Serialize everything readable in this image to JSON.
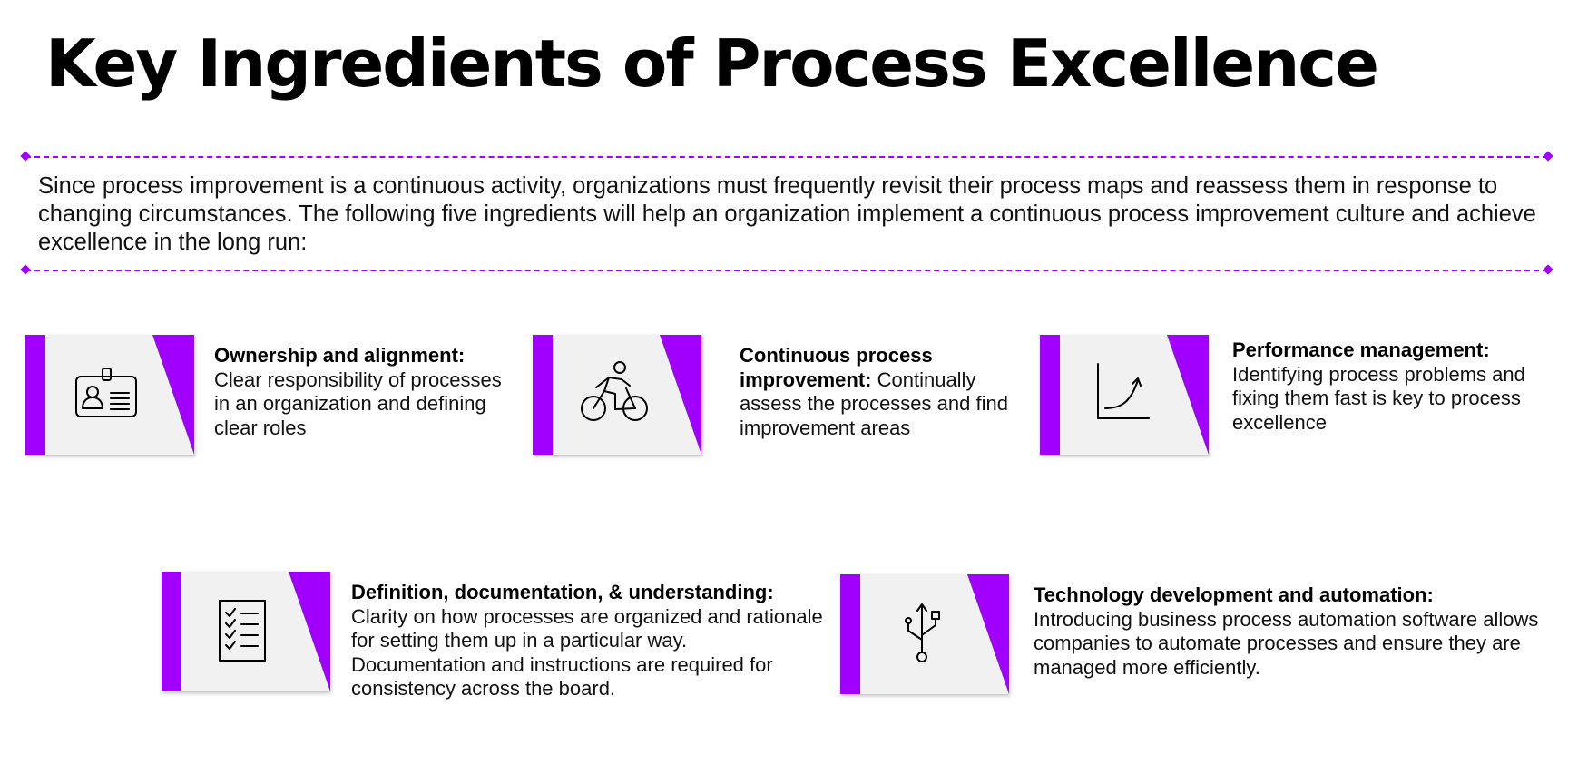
{
  "page": {
    "title": "Key Ingredients of Process Excellence",
    "intro": "Since process improvement is a continuous activity, organizations must frequently revisit their process maps and reassess them in response to changing circumstances. The following five ingredients will help an organization implement a continuous process improvement culture and achieve excellence in the long run:"
  },
  "colors": {
    "accent": "#a100ff",
    "card_background": "#f1f1f1",
    "text": "#000000"
  },
  "ingredients": [
    {
      "icon": "id-badge-icon",
      "heading": "Ownership and alignment:",
      "body": "Clear responsibility of processes in an organization and defining clear roles"
    },
    {
      "icon": "cyclist-icon",
      "heading": "Continuous process improvement:",
      "body": "Continually assess the processes and find improvement areas"
    },
    {
      "icon": "growth-curve-icon",
      "heading": "Performance management:",
      "body": "Identifying process problems and fixing them fast is key to process excellence"
    },
    {
      "icon": "checklist-icon",
      "heading": "Definition, documentation, & understanding:",
      "body": "Clarity on how processes are organized and rationale for setting them up in a particular way. Documentation and instructions are required for consistency across the board."
    },
    {
      "icon": "usb-icon",
      "heading": "Technology development and automation:",
      "body": "Introducing business process automation software allows companies to automate processes and ensure they are managed more efficiently."
    }
  ]
}
